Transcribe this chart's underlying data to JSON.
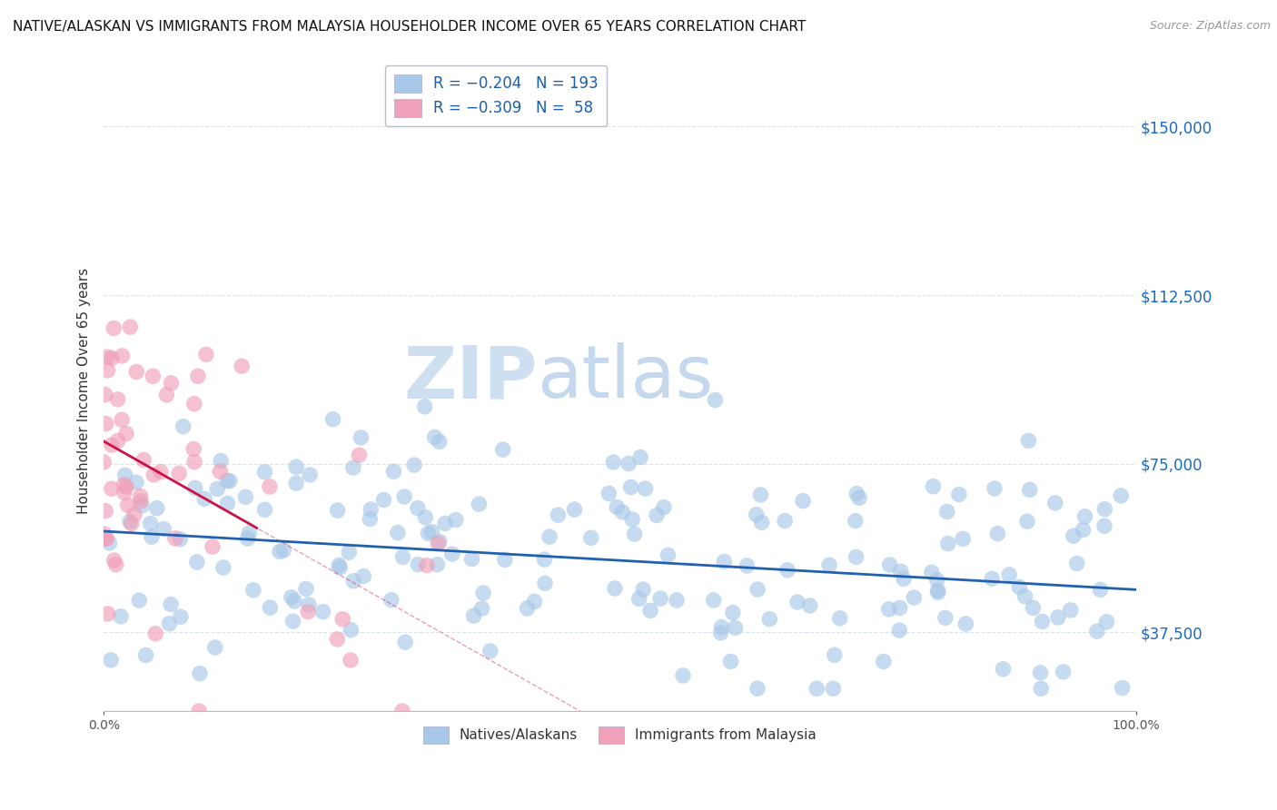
{
  "title": "NATIVE/ALASKAN VS IMMIGRANTS FROM MALAYSIA HOUSEHOLDER INCOME OVER 65 YEARS CORRELATION CHART",
  "source": "Source: ZipAtlas.com",
  "ylabel": "Householder Income Over 65 years",
  "xlim": [
    0.0,
    1.0
  ],
  "ylim": [
    20000,
    162500
  ],
  "yticks": [
    37500,
    75000,
    112500,
    150000
  ],
  "ytick_labels": [
    "$37,500",
    "$75,000",
    "$112,500",
    "$150,000"
  ],
  "xticks": [
    0.0,
    1.0
  ],
  "xtick_labels": [
    "0.0%",
    "100.0%"
  ],
  "legend_bottom": [
    "Natives/Alaskans",
    "Immigrants from Malaysia"
  ],
  "native_R": -0.204,
  "native_N": 193,
  "immigrant_R": -0.309,
  "immigrant_N": 58,
  "scatter_color_native": "#a8c8e8",
  "scatter_color_immigrant": "#f0a0b8",
  "trendline_color_native": "#2060b0",
  "trendline_color_immigrant": "#cc1144",
  "watermark_zip": "ZIP",
  "watermark_atlas": "atlas",
  "watermark_color_zip": "#d0e4f4",
  "watermark_color_atlas": "#c8ddf0",
  "background_color": "#ffffff",
  "grid_color": "#d8e4f0",
  "title_fontsize": 11,
  "source_fontsize": 9,
  "legend_top_label1": "R = −0.204   N = 193",
  "legend_top_label2": "R = −0.309   N =  58",
  "seed": 42
}
